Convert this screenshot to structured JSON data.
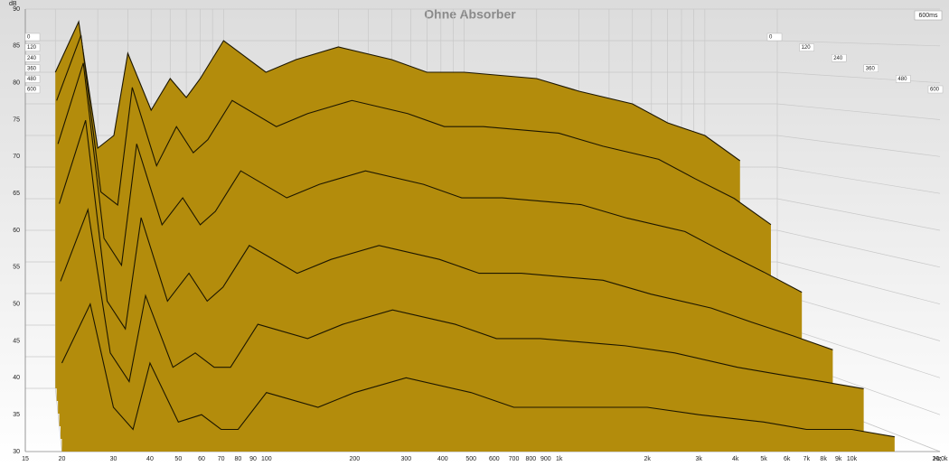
{
  "chart_data": {
    "type": "waterfall",
    "title": "Ohne Absorber",
    "y_label": "dB",
    "x_unit": "Hz",
    "time_label": "600ms",
    "log_x": true,
    "grid": true,
    "color": "#b38c0c",
    "line_color": "#1c1600",
    "xlim": [
      15,
      20000
    ],
    "ylim": [
      30,
      90
    ],
    "zlim": [
      0,
      600
    ],
    "xticks": [
      15,
      20,
      30,
      40,
      50,
      60,
      70,
      80,
      90,
      100,
      200,
      300,
      400,
      500,
      600,
      700,
      800,
      900,
      {
        "value": 1000,
        "label": "1k"
      },
      {
        "value": 2000,
        "label": "2k"
      },
      {
        "value": 3000,
        "label": "3k"
      },
      {
        "value": 4000,
        "label": "4k"
      },
      {
        "value": 5000,
        "label": "5k"
      },
      {
        "value": 6000,
        "label": "6k"
      },
      {
        "value": 7000,
        "label": "7k"
      },
      {
        "value": 8000,
        "label": "8k"
      },
      {
        "value": 9000,
        "label": "9k"
      },
      {
        "value": 10000,
        "label": "10k"
      },
      {
        "value": 20000,
        "label": "20,0k"
      }
    ],
    "yticks": [
      30,
      35,
      40,
      45,
      50,
      55,
      60,
      65,
      70,
      75,
      80,
      85,
      90
    ],
    "zticks": [
      0,
      120,
      240,
      360,
      480,
      600
    ],
    "x": [
      20,
      25,
      30,
      35,
      40,
      50,
      60,
      70,
      80,
      100,
      150,
      200,
      300,
      500,
      700,
      1000,
      2000,
      3000,
      5000,
      7000,
      10000,
      14000
    ],
    "series": [
      {
        "time": 0,
        "values": [
          80,
          88,
          68,
          70,
          83,
          74,
          79,
          76,
          79,
          85,
          80,
          82,
          84,
          82,
          80,
          80,
          79,
          77,
          75,
          72,
          70,
          66
        ]
      },
      {
        "time": 120,
        "values": [
          76,
          86,
          62,
          60,
          78,
          66,
          72,
          68,
          70,
          76,
          72,
          74,
          76,
          74,
          72,
          72,
          71,
          69,
          67,
          64,
          61,
          57
        ]
      },
      {
        "time": 240,
        "values": [
          70,
          82,
          56,
          52,
          70,
          58,
          62,
          58,
          60,
          66,
          62,
          64,
          66,
          64,
          62,
          62,
          61,
          59,
          57,
          54,
          51,
          48
        ]
      },
      {
        "time": 360,
        "values": [
          62,
          74,
          48,
          44,
          60,
          48,
          52,
          48,
          50,
          56,
          52,
          54,
          56,
          54,
          52,
          52,
          51,
          49,
          47,
          45,
          43,
          41
        ]
      },
      {
        "time": 480,
        "values": [
          52,
          62,
          42,
          38,
          50,
          40,
          42,
          40,
          40,
          46,
          44,
          46,
          48,
          46,
          44,
          44,
          43,
          42,
          40,
          39,
          38,
          37
        ]
      },
      {
        "time": 600,
        "values": [
          42,
          50,
          36,
          33,
          42,
          34,
          35,
          33,
          33,
          38,
          36,
          38,
          40,
          38,
          36,
          36,
          36,
          35,
          34,
          33,
          33,
          32
        ]
      }
    ]
  }
}
